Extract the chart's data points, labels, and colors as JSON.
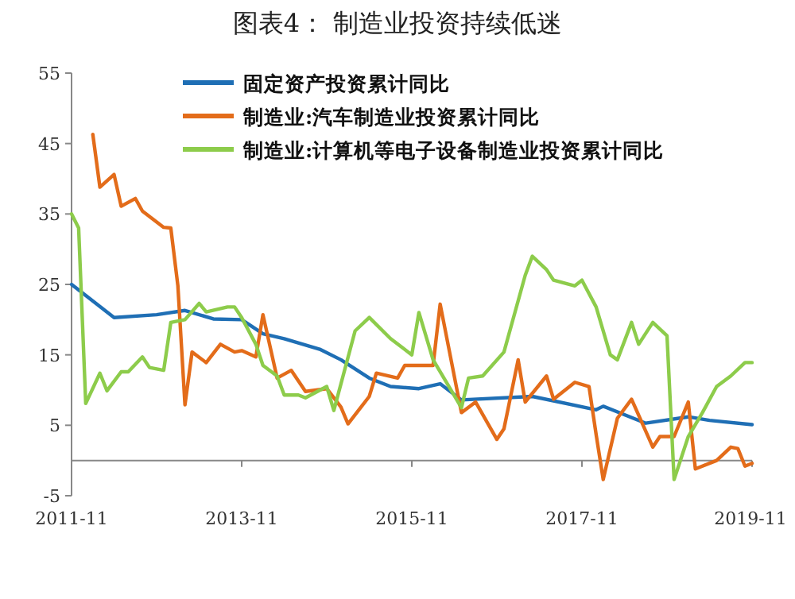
{
  "chart_data": {
    "type": "line",
    "title": "图表4：  制造业投资持续低迷",
    "legend": "top left",
    "grid": false,
    "ylim": [
      -5,
      55
    ],
    "yticks": [
      -5,
      5,
      15,
      25,
      35,
      45,
      55
    ],
    "xlim": [
      "2011-11",
      "2019-11"
    ],
    "xticks": [
      "2011-11",
      "2013-11",
      "2015-11",
      "2017-11",
      "2019-11"
    ],
    "series": [
      {
        "name": "固定资产投资累计同比",
        "color": "#1f6fb5",
        "x": [
          "2011-11",
          "2012-05",
          "2012-11",
          "2013-03",
          "2013-07",
          "2013-11",
          "2014-02",
          "2014-05",
          "2014-10",
          "2015-01",
          "2015-05",
          "2015-08",
          "2015-12",
          "2016-03",
          "2016-06",
          "2017-04",
          "2018-01",
          "2018-02",
          "2018-08",
          "2019-02",
          "2019-05",
          "2019-11"
        ],
        "values": [
          25,
          20.3,
          20.7,
          21.3,
          20.1,
          20,
          18,
          17.3,
          15.8,
          14.3,
          11.7,
          10.5,
          10.2,
          10.9,
          8.6,
          9.1,
          7.2,
          7.7,
          5.3,
          6.2,
          5.7,
          5.1
        ]
      },
      {
        "name": "制造业:汽车制造业投资累计同比",
        "color": "#e36c1a",
        "x": [
          "2012-02",
          "2012-03",
          "2012-05",
          "2012-06",
          "2012-08",
          "2012-09",
          "2012-12",
          "2013-01",
          "2013-02",
          "2013-03",
          "2013-04",
          "2013-06",
          "2013-08",
          "2013-10",
          "2013-11",
          "2014-01",
          "2014-02",
          "2014-04",
          "2014-06",
          "2014-08",
          "2014-11",
          "2015-01",
          "2015-02",
          "2015-05",
          "2015-06",
          "2015-09",
          "2015-10",
          "2016-02",
          "2016-03",
          "2016-06",
          "2016-08",
          "2016-11",
          "2016-12",
          "2017-02",
          "2017-03",
          "2017-06",
          "2017-07",
          "2017-10",
          "2017-12",
          "2018-01",
          "2018-02",
          "2018-04",
          "2018-06",
          "2018-09",
          "2018-10",
          "2018-12",
          "2019-02",
          "2019-03",
          "2019-06",
          "2019-08",
          "2019-09",
          "2019-10",
          "2019-11"
        ],
        "values": [
          46.3,
          38.8,
          40.6,
          36.1,
          37.2,
          35.4,
          33.1,
          33,
          24.8,
          7.9,
          15.4,
          13.9,
          16.5,
          15.4,
          15.6,
          14.7,
          20.7,
          11.7,
          12.8,
          9.8,
          10.2,
          7.6,
          5.2,
          9.1,
          12.4,
          11.7,
          13.5,
          13.5,
          22.2,
          6.8,
          8.3,
          3,
          4.5,
          14.3,
          8.3,
          12,
          8.7,
          11.1,
          10.5,
          3.7,
          -2.7,
          6,
          8.7,
          1.9,
          3.4,
          3.4,
          8.3,
          -1.2,
          0,
          1.9,
          1.7,
          -0.8,
          -0.4
        ]
      },
      {
        "name": "制造业:计算机等电子设备制造业投资累计同比",
        "color": "#8dcc4b",
        "x": [
          "2011-11",
          "2011-12",
          "2012-01",
          "2012-03",
          "2012-04",
          "2012-06",
          "2012-07",
          "2012-09",
          "2012-10",
          "2012-12",
          "2013-01",
          "2013-03",
          "2013-05",
          "2013-06",
          "2013-09",
          "2013-10",
          "2013-11",
          "2014-01",
          "2014-02",
          "2014-04",
          "2014-05",
          "2014-07",
          "2014-08",
          "2014-11",
          "2014-12",
          "2015-03",
          "2015-05",
          "2015-08",
          "2015-11",
          "2015-12",
          "2016-02",
          "2016-06",
          "2016-07",
          "2016-09",
          "2016-12",
          "2017-03",
          "2017-04",
          "2017-06",
          "2017-07",
          "2017-10",
          "2017-11",
          "2018-01",
          "2018-03",
          "2018-04",
          "2018-06",
          "2018-07",
          "2018-09",
          "2018-11",
          "2018-12",
          "2019-02",
          "2019-04",
          "2019-06",
          "2019-08",
          "2019-10",
          "2019-11"
        ],
        "values": [
          35,
          33,
          8.1,
          12.4,
          9.9,
          12.6,
          12.6,
          14.7,
          13.2,
          12.8,
          19.6,
          20,
          22.3,
          21.1,
          21.8,
          21.8,
          20.3,
          16.5,
          13.5,
          12,
          9.3,
          9.3,
          8.9,
          10.5,
          7.1,
          18.4,
          20.3,
          17.3,
          15,
          21,
          14.3,
          7.5,
          11.7,
          12,
          15.4,
          26.3,
          29,
          27.1,
          25.6,
          24.8,
          25.6,
          21.8,
          15,
          14.3,
          19.6,
          16.5,
          19.6,
          17.7,
          -2.7,
          3.4,
          6.8,
          10.5,
          12,
          13.9,
          13.9
        ]
      }
    ]
  }
}
